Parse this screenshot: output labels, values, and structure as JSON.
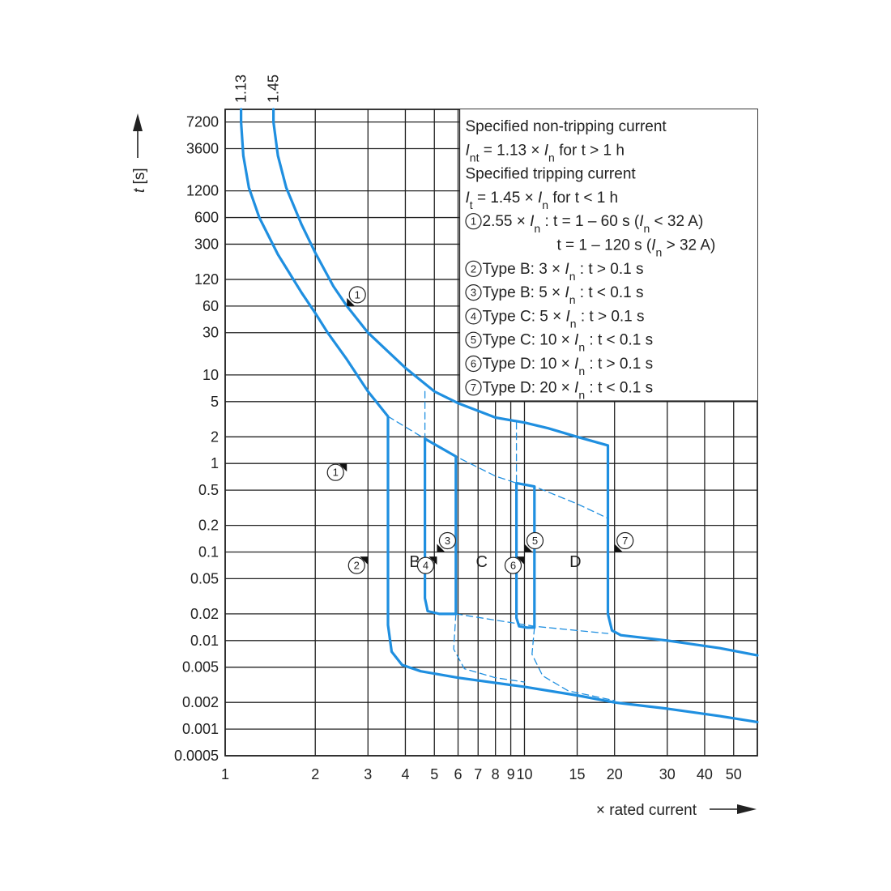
{
  "chart_data": {
    "type": "line",
    "title": "",
    "xlabel": "× rated current",
    "ylabel": "t [s]",
    "x_scale": "log",
    "y_scale": "log",
    "xlim": [
      1,
      60
    ],
    "ylim": [
      0.0005,
      10000
    ],
    "x_ticks": [
      {
        "v": 1,
        "label": "1"
      },
      {
        "v": 2,
        "label": "2"
      },
      {
        "v": 3,
        "label": "3"
      },
      {
        "v": 4,
        "label": "4"
      },
      {
        "v": 5,
        "label": "5"
      },
      {
        "v": 6,
        "label": "6"
      },
      {
        "v": 7,
        "label": "7"
      },
      {
        "v": 8,
        "label": "8"
      },
      {
        "v": 9,
        "label": "9"
      },
      {
        "v": 10,
        "label": "10"
      },
      {
        "v": 15,
        "label": "15"
      },
      {
        "v": 20,
        "label": "20"
      },
      {
        "v": 30,
        "label": "30"
      },
      {
        "v": 40,
        "label": "40"
      },
      {
        "v": 50,
        "label": "50"
      }
    ],
    "y_ticks": [
      {
        "v": 7200,
        "label": "7200"
      },
      {
        "v": 3600,
        "label": "3600"
      },
      {
        "v": 1200,
        "label": "1200"
      },
      {
        "v": 600,
        "label": "600"
      },
      {
        "v": 300,
        "label": "300"
      },
      {
        "v": 120,
        "label": "120"
      },
      {
        "v": 60,
        "label": "60"
      },
      {
        "v": 30,
        "label": "30"
      },
      {
        "v": 10,
        "label": "10"
      },
      {
        "v": 5,
        "label": "5"
      },
      {
        "v": 2,
        "label": "2"
      },
      {
        "v": 1,
        "label": "1"
      },
      {
        "v": 0.5,
        "label": "0.5"
      },
      {
        "v": 0.2,
        "label": "0.2"
      },
      {
        "v": 0.1,
        "label": "0.1"
      },
      {
        "v": 0.05,
        "label": "0.05"
      },
      {
        "v": 0.02,
        "label": "0.02"
      },
      {
        "v": 0.01,
        "label": "0.01"
      },
      {
        "v": 0.005,
        "label": "0.005"
      },
      {
        "v": 0.002,
        "label": "0.002"
      },
      {
        "v": 0.001,
        "label": "0.001"
      },
      {
        "v": 0.0005,
        "label": "0.0005"
      }
    ],
    "top_labels": [
      {
        "v": 1.13,
        "label": "1.13"
      },
      {
        "v": 1.45,
        "label": "1.45"
      }
    ],
    "grid": true,
    "series": [
      {
        "role": "upper_bound",
        "style": "solid",
        "points": [
          [
            1.45,
            10000
          ],
          [
            1.45,
            7200
          ],
          [
            1.5,
            3000
          ],
          [
            1.6,
            1300
          ],
          [
            1.8,
            500
          ],
          [
            2.0,
            240
          ],
          [
            2.3,
            100
          ],
          [
            2.55,
            60
          ],
          [
            3,
            30
          ],
          [
            4,
            12
          ],
          [
            5,
            6.5
          ],
          [
            6,
            4.8
          ],
          [
            8,
            3.3
          ],
          [
            10,
            2.9
          ],
          [
            12,
            2.5
          ],
          [
            15,
            2.0
          ],
          [
            19,
            1.6
          ],
          [
            19,
            0.02
          ],
          [
            19.6,
            0.013
          ],
          [
            21,
            0.0115
          ],
          [
            30,
            0.01
          ],
          [
            45,
            0.0082
          ],
          [
            60,
            0.0068
          ]
        ]
      },
      {
        "role": "lower_bound",
        "style": "solid",
        "points": [
          [
            1.13,
            10000
          ],
          [
            1.13,
            7200
          ],
          [
            1.15,
            3000
          ],
          [
            1.2,
            1300
          ],
          [
            1.3,
            600
          ],
          [
            1.5,
            230
          ],
          [
            1.8,
            85
          ],
          [
            2.0,
            50
          ],
          [
            2.2,
            30
          ],
          [
            2.55,
            15
          ],
          [
            3.0,
            6.5
          ],
          [
            3.5,
            3.4
          ],
          [
            3.5,
            0.015
          ],
          [
            3.6,
            0.0075
          ],
          [
            3.9,
            0.0053
          ],
          [
            4.5,
            0.0045
          ],
          [
            6,
            0.0038
          ],
          [
            10,
            0.003
          ],
          [
            15,
            0.0024
          ],
          [
            20,
            0.002
          ],
          [
            30,
            0.0017
          ],
          [
            45,
            0.0014
          ],
          [
            60,
            0.0012
          ]
        ]
      },
      {
        "role": "type_B",
        "style": "solid",
        "points": [
          [
            4.65,
            1.9
          ],
          [
            4.65,
            0.03
          ],
          [
            4.75,
            0.0215
          ],
          [
            5.2,
            0.02
          ],
          [
            5.9,
            0.02
          ],
          [
            5.9,
            1.2
          ],
          [
            4.65,
            1.9
          ]
        ]
      },
      {
        "role": "type_C",
        "style": "solid",
        "points": [
          [
            9.4,
            0.6
          ],
          [
            9.4,
            0.018
          ],
          [
            9.6,
            0.0145
          ],
          [
            10.2,
            0.014
          ],
          [
            10.8,
            0.014
          ],
          [
            10.8,
            0.55
          ],
          [
            9.4,
            0.6
          ]
        ]
      },
      {
        "role": "dashed_connector",
        "style": "dashed",
        "points": [
          [
            3.5,
            3.4
          ],
          [
            4.65,
            1.9
          ],
          [
            5.9,
            1.2
          ],
          [
            8,
            0.72
          ],
          [
            9.4,
            0.6
          ],
          [
            10.8,
            0.55
          ],
          [
            15,
            0.35
          ],
          [
            19,
            0.24
          ]
        ]
      },
      {
        "role": "dashed_connector",
        "style": "dashed",
        "points": [
          [
            5.9,
            0.02
          ],
          [
            10.8,
            0.0145
          ],
          [
            19,
            0.012
          ]
        ]
      },
      {
        "role": "dashed_connector",
        "style": "dashed",
        "points": [
          [
            4.65,
            6.5
          ],
          [
            4.65,
            1.9
          ]
        ]
      },
      {
        "role": "dashed_connector",
        "style": "dashed",
        "points": [
          [
            9.4,
            2.9
          ],
          [
            9.4,
            0.6
          ]
        ]
      },
      {
        "role": "dashed_connector",
        "style": "dashed",
        "points": [
          [
            5.9,
            0.02
          ],
          [
            5.8,
            0.008
          ],
          [
            6.3,
            0.0048
          ],
          [
            8,
            0.0038
          ],
          [
            10,
            0.0034
          ]
        ]
      },
      {
        "role": "dashed_connector",
        "style": "dashed",
        "points": [
          [
            10.8,
            0.014
          ],
          [
            10.6,
            0.007
          ],
          [
            11.5,
            0.004
          ],
          [
            14,
            0.0027
          ],
          [
            20,
            0.0021
          ]
        ]
      }
    ],
    "regions": [
      {
        "label": "B",
        "x": 4.3,
        "y": 0.08
      },
      {
        "label": "C",
        "x": 7.2,
        "y": 0.08
      },
      {
        "label": "D",
        "x": 14.8,
        "y": 0.08
      }
    ],
    "markers": [
      {
        "num": "1",
        "x": 2.55,
        "y": 60,
        "side": "right"
      },
      {
        "num": "1",
        "x": 2.55,
        "y": 0.9,
        "side": "left"
      },
      {
        "num": "2",
        "x": 3.0,
        "y": 0.08,
        "side": "left"
      },
      {
        "num": "3",
        "x": 5.1,
        "y": 0.1,
        "side": "right"
      },
      {
        "num": "4",
        "x": 5.1,
        "y": 0.08,
        "side": "left"
      },
      {
        "num": "5",
        "x": 10.0,
        "y": 0.1,
        "side": "right"
      },
      {
        "num": "6",
        "x": 10.0,
        "y": 0.08,
        "side": "left"
      },
      {
        "num": "7",
        "x": 20.0,
        "y": 0.1,
        "side": "right"
      }
    ],
    "legend": {
      "placement": "top-right",
      "lines": [
        {
          "text": "Specified non-tripping current"
        },
        {
          "text": "I",
          "sub": "nt",
          "rest": " = 1.13 × I",
          "sub2": "n",
          "tail": " for t > 1 h"
        },
        {
          "text": "Specified tripping current"
        },
        {
          "text": "I",
          "sub": "t",
          "rest": " = 1.45 × I",
          "sub2": "n",
          "tail": " for t < 1 h"
        },
        {
          "circle": "1",
          "text": " 2.55 × I",
          "sub": "n",
          "rest": " : t = 1 – 60 s (I",
          "sub2": "n",
          "tail": " < 32 A)"
        },
        {
          "indent": true,
          "text": "t = 1 – 120 s (I",
          "sub": "n",
          "rest": " > 32 A)"
        },
        {
          "circle": "2",
          "text": " Type B: 3 × I",
          "sub": "n",
          "rest": " : t > 0.1 s"
        },
        {
          "circle": "3",
          "text": " Type B: 5 × I",
          "sub": "n",
          "rest": " : t < 0.1 s"
        },
        {
          "circle": "4",
          "text": " Type C: 5 × I",
          "sub": "n",
          "rest": " : t > 0.1 s"
        },
        {
          "circle": "5",
          "text": " Type C: 10 × I",
          "sub": "n",
          "rest": " : t < 0.1 s"
        },
        {
          "circle": "6",
          "text": " Type D: 10 × I",
          "sub": "n",
          "rest": " : t > 0.1 s"
        },
        {
          "circle": "7",
          "text": " Type D: 20 × I",
          "sub": "n",
          "rest": " : t < 0.1 s"
        }
      ]
    },
    "colors": {
      "curve": "#1f8fe0",
      "grid": "#222222",
      "text": "#222222"
    }
  }
}
